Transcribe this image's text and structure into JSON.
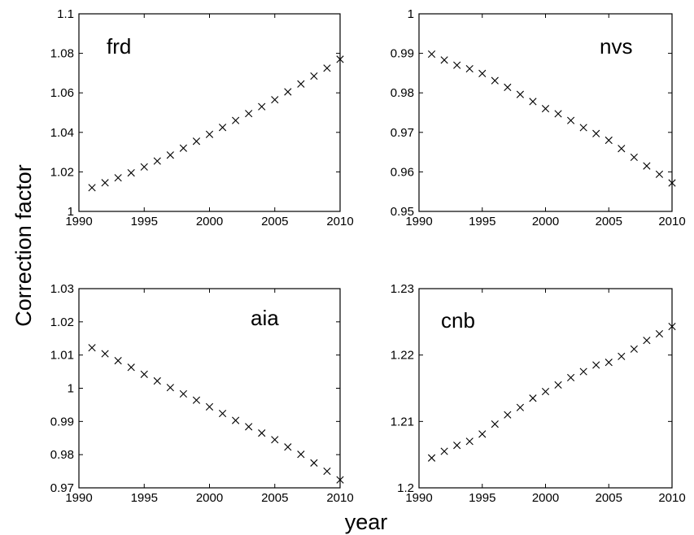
{
  "ylabel": "Correction factor",
  "xlabel": "year",
  "chart_data": [
    {
      "type": "scatter",
      "label": "frd",
      "marker": "x",
      "xlim": [
        1990,
        2010
      ],
      "ylim": [
        1,
        1.1
      ],
      "xticks": [
        1990,
        1995,
        2000,
        2005,
        2010
      ],
      "yticks": [
        1,
        1.02,
        1.04,
        1.06,
        1.08,
        1.1
      ],
      "ytick_labels": [
        "1",
        "1.02",
        "1.04",
        "1.06",
        "1.08",
        "1.1"
      ],
      "x": [
        1991,
        1992,
        1993,
        1994,
        1995,
        1996,
        1997,
        1998,
        1999,
        2000,
        2001,
        2002,
        2003,
        2004,
        2005,
        2006,
        2007,
        2008,
        2009,
        2010
      ],
      "y": [
        1.012,
        1.0145,
        1.017,
        1.0195,
        1.0225,
        1.0255,
        1.0285,
        1.032,
        1.0355,
        1.039,
        1.0425,
        1.046,
        1.0495,
        1.053,
        1.0565,
        1.0605,
        1.0645,
        1.0685,
        1.0725,
        1.077
      ]
    },
    {
      "type": "scatter",
      "label": "nvs",
      "marker": "x",
      "xlim": [
        1990,
        2010
      ],
      "ylim": [
        0.95,
        1
      ],
      "xticks": [
        1990,
        1995,
        2000,
        2005,
        2010
      ],
      "yticks": [
        0.95,
        0.96,
        0.97,
        0.98,
        0.99,
        1
      ],
      "ytick_labels": [
        "0.95",
        "0.96",
        "0.97",
        "0.98",
        "0.99",
        "1"
      ],
      "x": [
        1991,
        1992,
        1993,
        1994,
        1995,
        1996,
        1997,
        1998,
        1999,
        2000,
        2001,
        2002,
        2003,
        2004,
        2005,
        2006,
        2007,
        2008,
        2009,
        2010
      ],
      "y": [
        0.9898,
        0.9883,
        0.987,
        0.9861,
        0.9849,
        0.9831,
        0.9814,
        0.9796,
        0.9778,
        0.976,
        0.9747,
        0.973,
        0.9712,
        0.9697,
        0.968,
        0.9659,
        0.9637,
        0.9615,
        0.9594,
        0.9572
      ]
    },
    {
      "type": "scatter",
      "label": "aia",
      "marker": "x",
      "xlim": [
        1990,
        2010
      ],
      "ylim": [
        0.97,
        1.03
      ],
      "xticks": [
        1990,
        1995,
        2000,
        2005,
        2010
      ],
      "yticks": [
        0.97,
        0.98,
        0.99,
        1,
        1.01,
        1.02,
        1.03
      ],
      "ytick_labels": [
        "0.97",
        "0.98",
        "0.99",
        "1",
        "1.01",
        "1.02",
        "1.03"
      ],
      "x": [
        1991,
        1992,
        1993,
        1994,
        1995,
        1996,
        1997,
        1998,
        1999,
        2000,
        2001,
        2002,
        2003,
        2004,
        2005,
        2006,
        2007,
        2008,
        2009,
        2010
      ],
      "y": [
        1.0122,
        1.0104,
        1.0083,
        1.0063,
        1.0042,
        1.0022,
        1.0002,
        0.9983,
        0.9964,
        0.9944,
        0.9924,
        0.9903,
        0.9884,
        0.9865,
        0.9845,
        0.9823,
        0.9801,
        0.9775,
        0.975,
        0.9724
      ]
    },
    {
      "type": "scatter",
      "label": "cnb",
      "marker": "x",
      "xlim": [
        1990,
        2010
      ],
      "ylim": [
        1.2,
        1.23
      ],
      "xticks": [
        1990,
        1995,
        2000,
        2005,
        2010
      ],
      "yticks": [
        1.2,
        1.21,
        1.22,
        1.23
      ],
      "ytick_labels": [
        "1.2",
        "1.21",
        "1.22",
        "1.23"
      ],
      "x": [
        1991,
        1992,
        1993,
        1994,
        1995,
        1996,
        1997,
        1998,
        1999,
        2000,
        2001,
        2002,
        2003,
        2004,
        2005,
        2006,
        2007,
        2008,
        2009,
        2010
      ],
      "y": [
        1.2045,
        1.2055,
        1.2064,
        1.207,
        1.2081,
        1.2096,
        1.211,
        1.2121,
        1.2135,
        1.2145,
        1.2155,
        1.2166,
        1.2175,
        1.2185,
        1.2189,
        1.2198,
        1.2209,
        1.2222,
        1.2232,
        1.2243
      ]
    }
  ]
}
